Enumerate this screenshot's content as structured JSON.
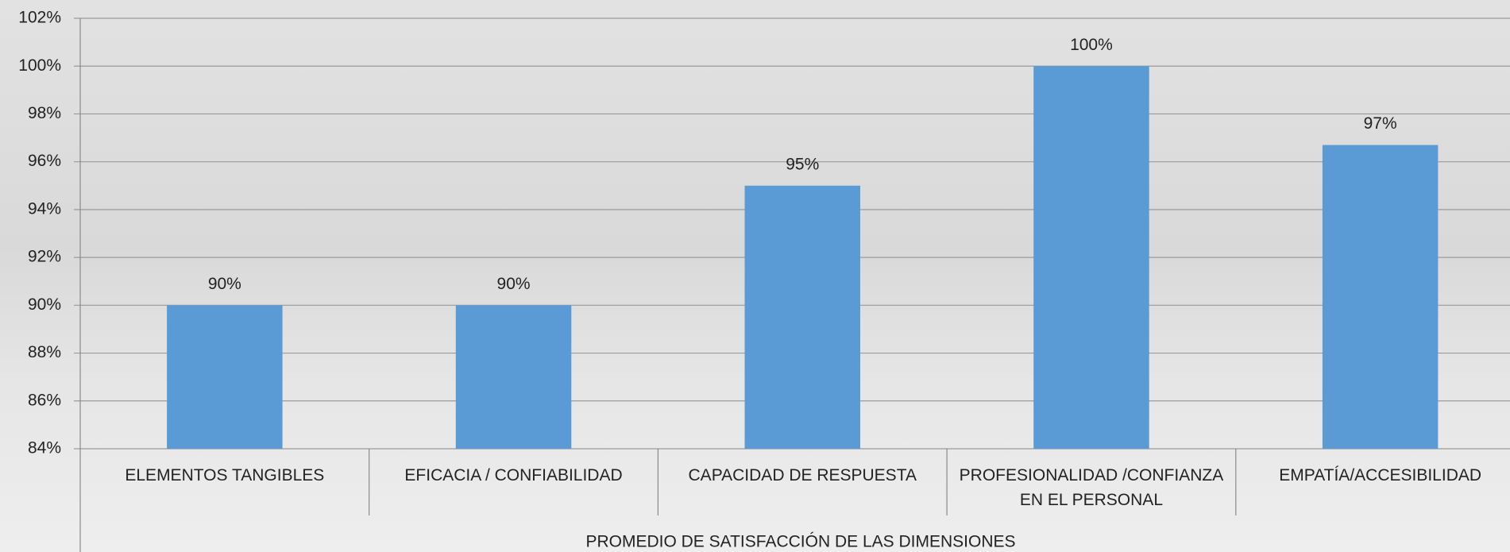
{
  "chart_data": {
    "type": "bar",
    "x_label": "PROMEDIO DE SATISFACCIÓN DE LAS DIMENSIONES",
    "categories": [
      "ELEMENTOS TANGIBLES",
      "EFICACIA / CONFIABILIDAD",
      "CAPACIDAD DE RESPUESTA",
      "PROFESIONALIDAD /CONFIANZA EN EL PERSONAL",
      "EMPATÍA/ACCESIBILIDAD"
    ],
    "values": [
      90,
      90,
      95,
      100,
      96.7
    ],
    "value_labels": [
      "90%",
      "90%",
      "95%",
      "100%",
      "97%"
    ],
    "color": "#5b9bd5",
    "ylim": [
      84,
      102
    ],
    "yticks": [
      {
        "value": 84,
        "label": "84%"
      },
      {
        "value": 86,
        "label": "86%"
      },
      {
        "value": 88,
        "label": "88%"
      },
      {
        "value": 90,
        "label": "90%"
      },
      {
        "value": 92,
        "label": "92%"
      },
      {
        "value": 94,
        "label": "94%"
      },
      {
        "value": 96,
        "label": "96%"
      },
      {
        "value": 98,
        "label": "98%"
      },
      {
        "value": 100,
        "label": "100%"
      },
      {
        "value": 102,
        "label": "102%"
      }
    ],
    "grid": true
  }
}
